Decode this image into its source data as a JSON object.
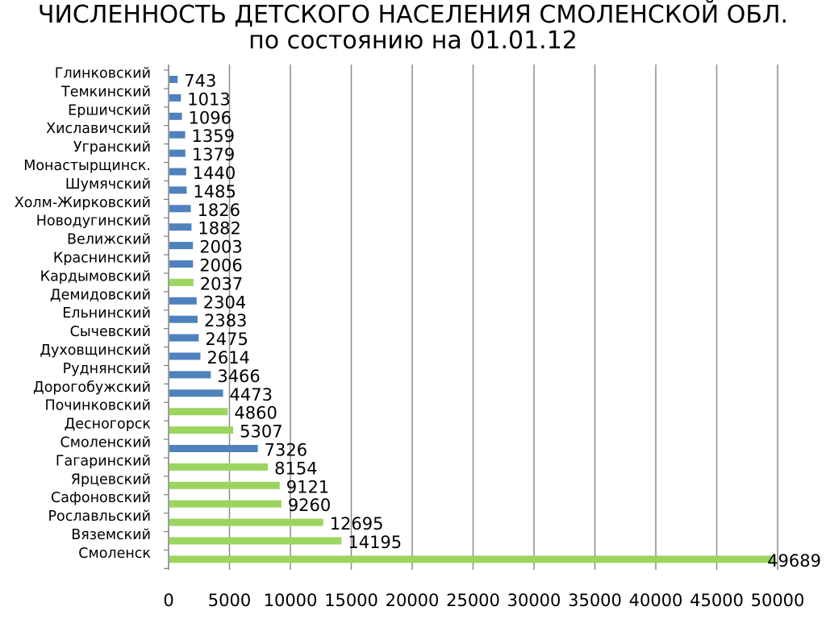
{
  "page": {
    "title_line1": "ЧИСЛЕННОСТЬ  ДЕТСКОГО НАСЕЛЕНИЯ СМОЛЕНСКОЙ ОБЛ.",
    "title_line2": "по состоянию на 01.01.12"
  },
  "colors": {
    "blue": "#4f81bd",
    "green": "#9bd55f",
    "grid": "#8c8c8c",
    "axis": "#7f7f7f"
  },
  "chart_data": {
    "type": "bar",
    "orientation": "horizontal",
    "title": "ЧИСЛЕННОСТЬ  ДЕТСКОГО НАСЕЛЕНИЯ СМОЛЕНСКОЙ ОБЛ. по состоянию на 01.01.12",
    "xlabel": "",
    "ylabel": "",
    "xlim": [
      0,
      50000
    ],
    "xticks": [
      0,
      5000,
      10000,
      15000,
      20000,
      25000,
      30000,
      35000,
      40000,
      45000,
      50000
    ],
    "grid": "vertical",
    "data_labels": true,
    "bars": [
      {
        "category": "Глинковский",
        "value": 743,
        "color": "blue"
      },
      {
        "category": "Темкинский",
        "value": 1013,
        "color": "blue"
      },
      {
        "category": "Ершичский",
        "value": 1096,
        "color": "blue"
      },
      {
        "category": "Хиславичский",
        "value": 1359,
        "color": "blue"
      },
      {
        "category": "Угранский",
        "value": 1379,
        "color": "blue"
      },
      {
        "category": "Монастырщинск.",
        "value": 1440,
        "color": "blue"
      },
      {
        "category": "Шумячский",
        "value": 1485,
        "color": "blue"
      },
      {
        "category": "Холм-Жирковский",
        "value": 1826,
        "color": "blue"
      },
      {
        "category": "Новодугинский",
        "value": 1882,
        "color": "blue"
      },
      {
        "category": "Велижский",
        "value": 2003,
        "color": "blue"
      },
      {
        "category": "Краснинский",
        "value": 2006,
        "color": "blue"
      },
      {
        "category": "Кардымовский",
        "value": 2037,
        "color": "green"
      },
      {
        "category": "Демидовский",
        "value": 2304,
        "color": "blue"
      },
      {
        "category": "Ельнинский",
        "value": 2383,
        "color": "blue"
      },
      {
        "category": "Сычевский",
        "value": 2475,
        "color": "blue"
      },
      {
        "category": "Духовщинский",
        "value": 2614,
        "color": "blue"
      },
      {
        "category": "Руднянский",
        "value": 3466,
        "color": "blue"
      },
      {
        "category": "Дорогобужский",
        "value": 4473,
        "color": "blue"
      },
      {
        "category": "Починковский",
        "value": 4860,
        "color": "green"
      },
      {
        "category": "Десногорск",
        "value": 5307,
        "color": "green"
      },
      {
        "category": "Смоленский",
        "value": 7326,
        "color": "blue"
      },
      {
        "category": "Гагаринский",
        "value": 8154,
        "color": "green"
      },
      {
        "category": "Ярцевский",
        "value": 9121,
        "color": "green"
      },
      {
        "category": "Сафоновский",
        "value": 9260,
        "color": "green"
      },
      {
        "category": "Рославльский",
        "value": 12695,
        "color": "green"
      },
      {
        "category": "Вяземский",
        "value": 14195,
        "color": "green"
      },
      {
        "category": "Смоленск",
        "value": 49689,
        "color": "green"
      }
    ]
  }
}
